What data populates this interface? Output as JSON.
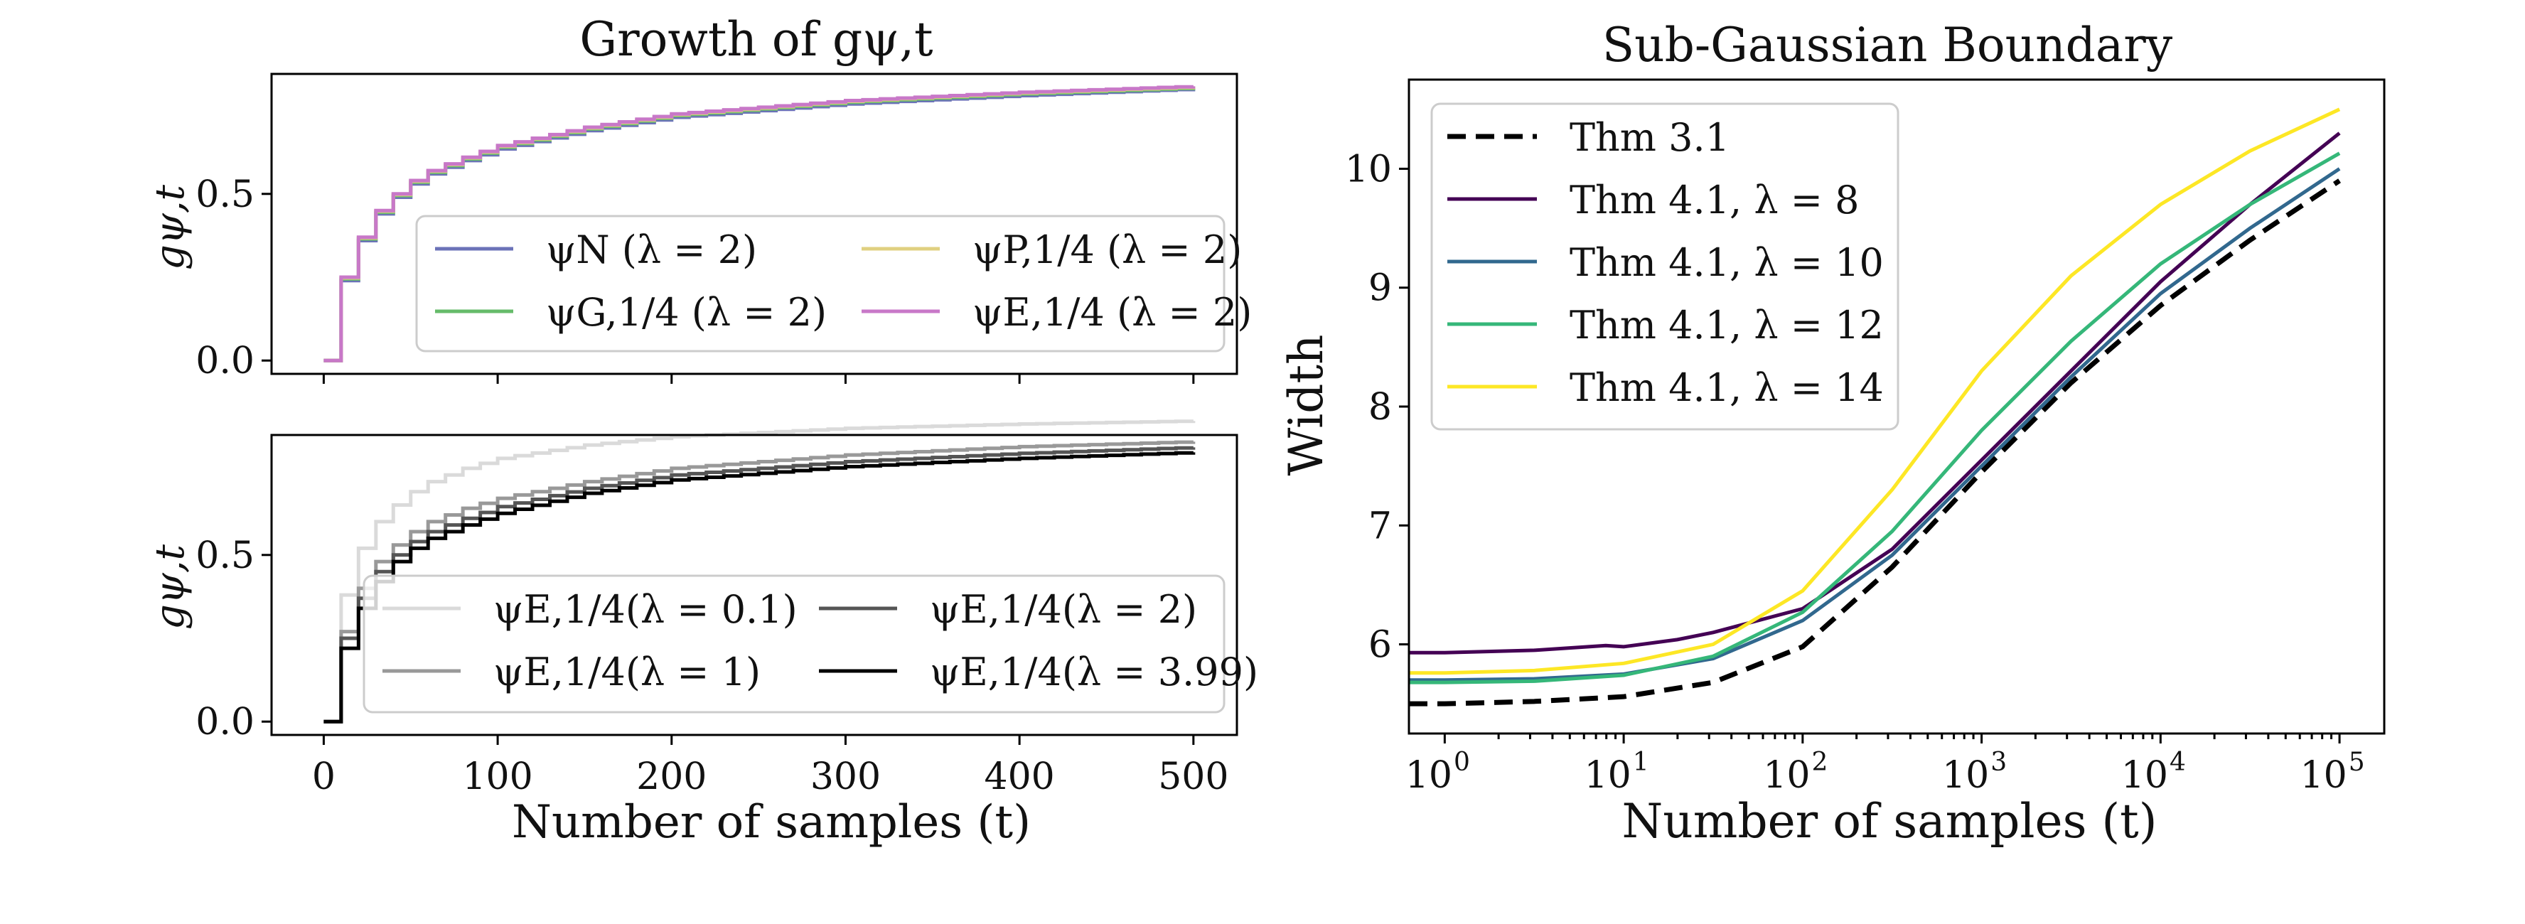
{
  "chart_data": [
    {
      "type": "line",
      "id": "top-left",
      "title": "Growth of gψ,t",
      "xlabel": "",
      "ylabel": "gψ,t",
      "xlim": [
        -30,
        525
      ],
      "ylim": [
        -0.04,
        0.86
      ],
      "xticks": [
        0,
        100,
        200,
        300,
        400,
        500
      ],
      "xtick_labels_visible": false,
      "yticks": [
        0.0,
        0.5
      ],
      "ytick_labels": [
        "0.0",
        "0.5"
      ],
      "legend_position": "lower-right",
      "legend_columns": 2,
      "series": [
        {
          "name": "ψN (λ = 2)",
          "color": "#6b72b8",
          "x": [
            0,
            10,
            20,
            30,
            40,
            50,
            60,
            80,
            100,
            150,
            200,
            300,
            400,
            500
          ],
          "y": [
            0.0,
            0.24,
            0.36,
            0.44,
            0.49,
            0.53,
            0.56,
            0.6,
            0.635,
            0.69,
            0.73,
            0.77,
            0.795,
            0.815
          ]
        },
        {
          "name": "ψG,1/4 (λ = 2)",
          "color": "#66bb6a",
          "x": [
            0,
            10,
            20,
            30,
            40,
            50,
            60,
            80,
            100,
            150,
            200,
            300,
            400,
            500
          ],
          "y": [
            0.0,
            0.245,
            0.365,
            0.445,
            0.495,
            0.535,
            0.565,
            0.605,
            0.64,
            0.695,
            0.735,
            0.775,
            0.8,
            0.818
          ]
        },
        {
          "name": "ψP,1/4 (λ = 2)",
          "color": "#e0d080",
          "x": [
            0,
            10,
            20,
            30,
            40,
            50,
            60,
            80,
            100,
            150,
            200,
            300,
            400,
            500
          ],
          "y": [
            0.0,
            0.248,
            0.368,
            0.448,
            0.498,
            0.538,
            0.568,
            0.608,
            0.643,
            0.698,
            0.738,
            0.778,
            0.803,
            0.821
          ]
        },
        {
          "name": "ψE,1/4 (λ = 2)",
          "color": "#c878c8",
          "x": [
            0,
            10,
            20,
            30,
            40,
            50,
            60,
            80,
            100,
            150,
            200,
            300,
            400,
            500
          ],
          "y": [
            0.0,
            0.25,
            0.37,
            0.45,
            0.5,
            0.54,
            0.57,
            0.61,
            0.645,
            0.7,
            0.74,
            0.78,
            0.805,
            0.823
          ]
        }
      ]
    },
    {
      "type": "line",
      "id": "bottom-left",
      "title": "",
      "xlabel": "Number of samples (t)",
      "ylabel": "gψ,t",
      "xlim": [
        -30,
        525
      ],
      "ylim": [
        -0.04,
        0.86
      ],
      "xticks": [
        0,
        100,
        200,
        300,
        400,
        500
      ],
      "xtick_labels": [
        "0",
        "100",
        "200",
        "300",
        "400",
        "500"
      ],
      "yticks": [
        0.0,
        0.5
      ],
      "ytick_labels": [
        "0.0",
        "0.5"
      ],
      "legend_position": "lower-right",
      "legend_columns": 2,
      "series": [
        {
          "name": "ψE,1/4(λ = 0.1)",
          "color": "#dadada",
          "x": [
            0,
            10,
            20,
            30,
            40,
            50,
            60,
            80,
            100,
            150,
            200,
            300,
            400,
            500
          ],
          "y": [
            0.0,
            0.38,
            0.52,
            0.6,
            0.65,
            0.69,
            0.72,
            0.76,
            0.79,
            0.83,
            0.855,
            0.88,
            0.893,
            0.902
          ]
        },
        {
          "name": "ψE,1/4(λ = 1)",
          "color": "#999999",
          "x": [
            0,
            10,
            20,
            30,
            40,
            50,
            60,
            80,
            100,
            150,
            200,
            300,
            400,
            500
          ],
          "y": [
            0.0,
            0.27,
            0.4,
            0.48,
            0.53,
            0.57,
            0.6,
            0.64,
            0.67,
            0.72,
            0.76,
            0.8,
            0.825,
            0.84
          ]
        },
        {
          "name": "ψE,1/4(λ = 2)",
          "color": "#555555",
          "x": [
            0,
            10,
            20,
            30,
            40,
            50,
            60,
            80,
            100,
            150,
            200,
            300,
            400,
            500
          ],
          "y": [
            0.0,
            0.25,
            0.37,
            0.45,
            0.5,
            0.54,
            0.57,
            0.61,
            0.645,
            0.7,
            0.74,
            0.78,
            0.805,
            0.823
          ]
        },
        {
          "name": "ψE,1/4(λ = 3.99)",
          "color": "#000000",
          "x": [
            0,
            10,
            20,
            30,
            40,
            50,
            60,
            80,
            100,
            150,
            200,
            300,
            400,
            500
          ],
          "y": [
            0.0,
            0.22,
            0.34,
            0.42,
            0.48,
            0.52,
            0.55,
            0.59,
            0.625,
            0.685,
            0.725,
            0.765,
            0.79,
            0.808
          ]
        }
      ]
    },
    {
      "type": "line",
      "id": "right",
      "title": "Sub-Gaussian Boundary",
      "xlabel": "Number of samples (t)",
      "ylabel": "Width",
      "xscale": "log",
      "xlim_log10": [
        -0.2,
        5.25
      ],
      "ylim": [
        5.25,
        10.75
      ],
      "xticks_log10": [
        0,
        1,
        2,
        3,
        4,
        5
      ],
      "xtick_labels": [
        "10",
        "10",
        "10",
        "10",
        "10",
        "10"
      ],
      "xtick_exponents": [
        "0",
        "1",
        "2",
        "3",
        "4",
        "5"
      ],
      "yticks": [
        6,
        7,
        8,
        9,
        10
      ],
      "ytick_labels": [
        "6",
        "7",
        "8",
        "9",
        "10"
      ],
      "legend_position": "upper-left",
      "legend_columns": 1,
      "series": [
        {
          "name": "Thm 3.1",
          "color": "#000000",
          "dashed": true,
          "log10x": [
            -0.2,
            0,
            0.5,
            1,
            1.5,
            2,
            2.5,
            3,
            3.5,
            4,
            4.5,
            5
          ],
          "y": [
            5.5,
            5.5,
            5.52,
            5.56,
            5.68,
            5.98,
            6.65,
            7.45,
            8.2,
            8.85,
            9.4,
            9.9
          ]
        },
        {
          "name": "Thm 4.1, λ = 8",
          "color": "#440154",
          "log10x": [
            -0.2,
            0,
            0.5,
            0.9,
            1.0,
            1.3,
            1.5,
            2,
            2.5,
            3,
            3.5,
            4,
            4.5,
            5
          ],
          "y": [
            5.93,
            5.93,
            5.95,
            5.99,
            5.98,
            6.04,
            6.1,
            6.3,
            6.8,
            7.55,
            8.3,
            9.05,
            9.7,
            10.3
          ]
        },
        {
          "name": "Thm 4.1, λ = 10",
          "color": "#31688e",
          "log10x": [
            -0.2,
            0,
            0.5,
            1,
            1.5,
            2,
            2.5,
            3,
            3.5,
            4,
            4.5,
            5
          ],
          "y": [
            5.7,
            5.7,
            5.71,
            5.75,
            5.88,
            6.2,
            6.75,
            7.5,
            8.25,
            8.95,
            9.5,
            10.0
          ]
        },
        {
          "name": "Thm 4.1, λ = 12",
          "color": "#35b779",
          "log10x": [
            -0.2,
            0,
            0.5,
            1,
            1.5,
            2,
            2.5,
            3,
            3.5,
            4,
            4.5,
            5
          ],
          "y": [
            5.68,
            5.68,
            5.69,
            5.74,
            5.9,
            6.27,
            6.95,
            7.8,
            8.55,
            9.2,
            9.7,
            10.13
          ]
        },
        {
          "name": "Thm 4.1, λ = 14",
          "color": "#fde725",
          "log10x": [
            -0.2,
            0,
            0.5,
            1,
            1.5,
            2,
            2.5,
            3,
            3.5,
            4,
            4.5,
            5
          ],
          "y": [
            5.76,
            5.76,
            5.78,
            5.84,
            6.0,
            6.45,
            7.3,
            8.3,
            9.1,
            9.7,
            10.15,
            10.5
          ]
        }
      ]
    }
  ]
}
